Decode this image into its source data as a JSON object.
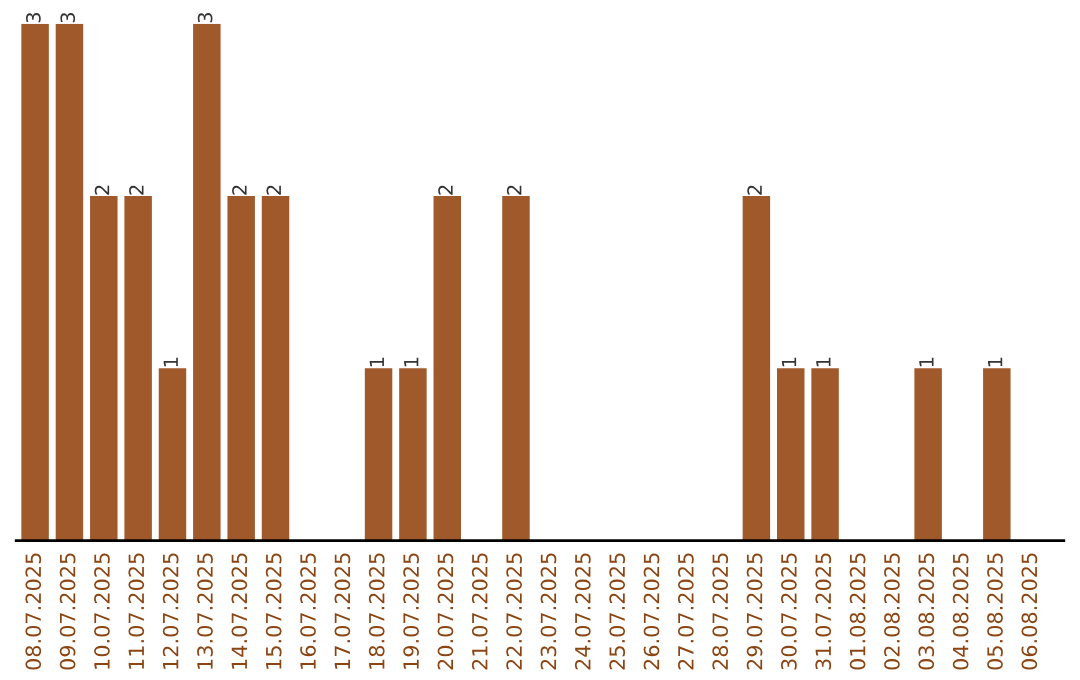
{
  "chart_data": {
    "type": "bar",
    "categories": [
      "08.07.2025",
      "09.07.2025",
      "10.07.2025",
      "11.07.2025",
      "12.07.2025",
      "13.07.2025",
      "14.07.2025",
      "15.07.2025",
      "16.07.2025",
      "17.07.2025",
      "18.07.2025",
      "19.07.2025",
      "20.07.2025",
      "21.07.2025",
      "22.07.2025",
      "23.07.2025",
      "24.07.2025",
      "25.07.2025",
      "26.07.2025",
      "27.07.2025",
      "28.07.2025",
      "29.07.2025",
      "30.07.2025",
      "31.07.2025",
      "01.08.2025",
      "02.08.2025",
      "03.08.2025",
      "04.08.2025",
      "05.08.2025",
      "06.08.2025"
    ],
    "values": [
      3,
      3,
      2,
      2,
      1,
      3,
      2,
      2,
      0,
      0,
      1,
      1,
      2,
      0,
      2,
      0,
      0,
      0,
      0,
      0,
      0,
      2,
      1,
      1,
      0,
      0,
      1,
      0,
      1,
      0
    ],
    "value_labels": [
      "3",
      "3",
      "2",
      "2",
      "1",
      "3",
      "2",
      "2",
      null,
      null,
      "1",
      "1",
      "2",
      null,
      "2",
      null,
      null,
      null,
      null,
      null,
      null,
      "2",
      "1",
      "1",
      null,
      null,
      "1",
      null,
      "1",
      null
    ],
    "color": "#a0592a",
    "tick_labels": "x",
    "grid": false,
    "legend": false
  }
}
